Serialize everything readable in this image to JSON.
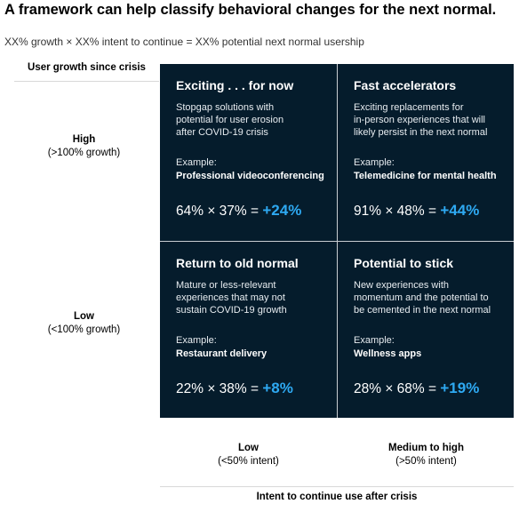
{
  "title": "A framework can help classify behavioral changes for the next normal.",
  "subtitle": "XX% growth × XX% intent to continue = XX% potential next normal usership",
  "y_axis": {
    "title": "User growth since crisis",
    "high": {
      "level": "High",
      "detail": "(>100% growth)"
    },
    "low": {
      "level": "Low",
      "detail": "(<100% growth)"
    }
  },
  "x_axis": {
    "title": "Intent to continue use after crisis",
    "low": {
      "level": "Low",
      "detail": "(<50% intent)"
    },
    "high": {
      "level": "Medium to high",
      "detail": "(>50% intent)"
    }
  },
  "colors": {
    "grid_bg": "#051c2c",
    "accent": "#2ea9f2"
  },
  "quadrants": [
    {
      "title": "Exciting . . . for now",
      "desc": "Stopgap solutions with\npotential for user erosion\nafter COVID-19 crisis",
      "example_label": "Example:",
      "example": "Professional videoconferencing",
      "formula": "64% × 37% = ",
      "result": "+24%"
    },
    {
      "title": "Fast accelerators",
      "desc": "Exciting replacements for\nin-person experiences that will\nlikely persist in the next normal",
      "example_label": "Example:",
      "example": "Telemedicine for mental health",
      "formula": "91% × 48% = ",
      "result": "+44%"
    },
    {
      "title": "Return to old normal",
      "desc": "Mature or less-relevant\nexperiences that may not\nsustain COVID-19 growth",
      "example_label": "Example:",
      "example": "Restaurant delivery",
      "formula": "22% × 38% = ",
      "result": "+8%"
    },
    {
      "title": "Potential to stick",
      "desc": "New experiences with\nmomentum and the potential to\nbe cemented in the next normal",
      "example_label": "Example:",
      "example": "Wellness apps",
      "formula": "28% × 68% = ",
      "result": "+19%"
    }
  ]
}
